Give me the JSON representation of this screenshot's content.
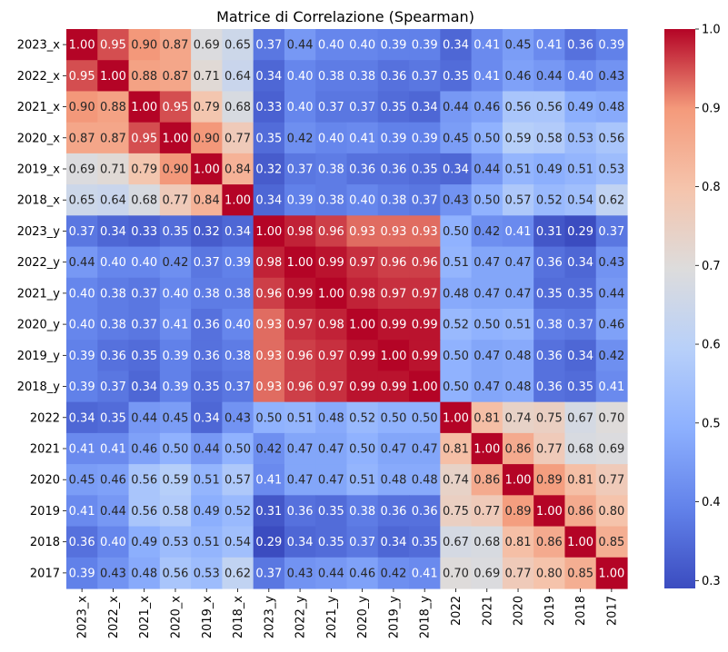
{
  "chart_data": {
    "type": "heatmap",
    "title": "Matrice di Correlazione (Spearman)",
    "xlabel": "",
    "ylabel": "",
    "labels": [
      "2023_x",
      "2022_x",
      "2021_x",
      "2020_x",
      "2019_x",
      "2018_x",
      "2023_y",
      "2022_y",
      "2021_y",
      "2020_y",
      "2019_y",
      "2018_y",
      "2022",
      "2021",
      "2020",
      "2019",
      "2018",
      "2017"
    ],
    "values": [
      [
        1.0,
        0.95,
        0.9,
        0.87,
        0.69,
        0.65,
        0.37,
        0.44,
        0.4,
        0.4,
        0.39,
        0.39,
        0.34,
        0.41,
        0.45,
        0.41,
        0.36,
        0.39
      ],
      [
        0.95,
        1.0,
        0.88,
        0.87,
        0.71,
        0.64,
        0.34,
        0.4,
        0.38,
        0.38,
        0.36,
        0.37,
        0.35,
        0.41,
        0.46,
        0.44,
        0.4,
        0.43
      ],
      [
        0.9,
        0.88,
        1.0,
        0.95,
        0.79,
        0.68,
        0.33,
        0.4,
        0.37,
        0.37,
        0.35,
        0.34,
        0.44,
        0.46,
        0.56,
        0.56,
        0.49,
        0.48
      ],
      [
        0.87,
        0.87,
        0.95,
        1.0,
        0.9,
        0.77,
        0.35,
        0.42,
        0.4,
        0.41,
        0.39,
        0.39,
        0.45,
        0.5,
        0.59,
        0.58,
        0.53,
        0.56
      ],
      [
        0.69,
        0.71,
        0.79,
        0.9,
        1.0,
        0.84,
        0.32,
        0.37,
        0.38,
        0.36,
        0.36,
        0.35,
        0.34,
        0.44,
        0.51,
        0.49,
        0.51,
        0.53
      ],
      [
        0.65,
        0.64,
        0.68,
        0.77,
        0.84,
        1.0,
        0.34,
        0.39,
        0.38,
        0.4,
        0.38,
        0.37,
        0.43,
        0.5,
        0.57,
        0.52,
        0.54,
        0.62
      ],
      [
        0.37,
        0.34,
        0.33,
        0.35,
        0.32,
        0.34,
        1.0,
        0.98,
        0.96,
        0.93,
        0.93,
        0.93,
        0.5,
        0.42,
        0.41,
        0.31,
        0.29,
        0.37
      ],
      [
        0.44,
        0.4,
        0.4,
        0.42,
        0.37,
        0.39,
        0.98,
        1.0,
        0.99,
        0.97,
        0.96,
        0.96,
        0.51,
        0.47,
        0.47,
        0.36,
        0.34,
        0.43
      ],
      [
        0.4,
        0.38,
        0.37,
        0.4,
        0.38,
        0.38,
        0.96,
        0.99,
        1.0,
        0.98,
        0.97,
        0.97,
        0.48,
        0.47,
        0.47,
        0.35,
        0.35,
        0.44
      ],
      [
        0.4,
        0.38,
        0.37,
        0.41,
        0.36,
        0.4,
        0.93,
        0.97,
        0.98,
        1.0,
        0.99,
        0.99,
        0.52,
        0.5,
        0.51,
        0.38,
        0.37,
        0.46
      ],
      [
        0.39,
        0.36,
        0.35,
        0.39,
        0.36,
        0.38,
        0.93,
        0.96,
        0.97,
        0.99,
        1.0,
        0.99,
        0.5,
        0.47,
        0.48,
        0.36,
        0.34,
        0.42
      ],
      [
        0.39,
        0.37,
        0.34,
        0.39,
        0.35,
        0.37,
        0.93,
        0.96,
        0.97,
        0.99,
        0.99,
        1.0,
        0.5,
        0.47,
        0.48,
        0.36,
        0.35,
        0.41
      ],
      [
        0.34,
        0.35,
        0.44,
        0.45,
        0.34,
        0.43,
        0.5,
        0.51,
        0.48,
        0.52,
        0.5,
        0.5,
        1.0,
        0.81,
        0.74,
        0.75,
        0.67,
        0.7
      ],
      [
        0.41,
        0.41,
        0.46,
        0.5,
        0.44,
        0.5,
        0.42,
        0.47,
        0.47,
        0.5,
        0.47,
        0.47,
        0.81,
        1.0,
        0.86,
        0.77,
        0.68,
        0.69
      ],
      [
        0.45,
        0.46,
        0.56,
        0.59,
        0.51,
        0.57,
        0.41,
        0.47,
        0.47,
        0.51,
        0.48,
        0.48,
        0.74,
        0.86,
        1.0,
        0.89,
        0.81,
        0.77
      ],
      [
        0.41,
        0.44,
        0.56,
        0.58,
        0.49,
        0.52,
        0.31,
        0.36,
        0.35,
        0.38,
        0.36,
        0.36,
        0.75,
        0.77,
        0.89,
        1.0,
        0.86,
        0.8
      ],
      [
        0.36,
        0.4,
        0.49,
        0.53,
        0.51,
        0.54,
        0.29,
        0.34,
        0.35,
        0.37,
        0.34,
        0.35,
        0.67,
        0.68,
        0.81,
        0.86,
        1.0,
        0.85
      ],
      [
        0.39,
        0.43,
        0.48,
        0.56,
        0.53,
        0.62,
        0.37,
        0.43,
        0.44,
        0.46,
        0.42,
        0.41,
        0.7,
        0.69,
        0.77,
        0.8,
        0.85,
        1.0
      ]
    ],
    "colormap": "coolwarm",
    "vmin": 0.29,
    "vmax": 1.0,
    "colorbar_ticks": [
      0.3,
      0.4,
      0.5,
      0.6,
      0.7,
      0.8,
      0.9,
      1.0
    ],
    "colorbar_tick_labels": [
      "0.3",
      "0.4",
      "0.5",
      "0.6",
      "0.7",
      "0.8",
      "0.9",
      "1.0"
    ],
    "annotations": true,
    "grid": false
  }
}
